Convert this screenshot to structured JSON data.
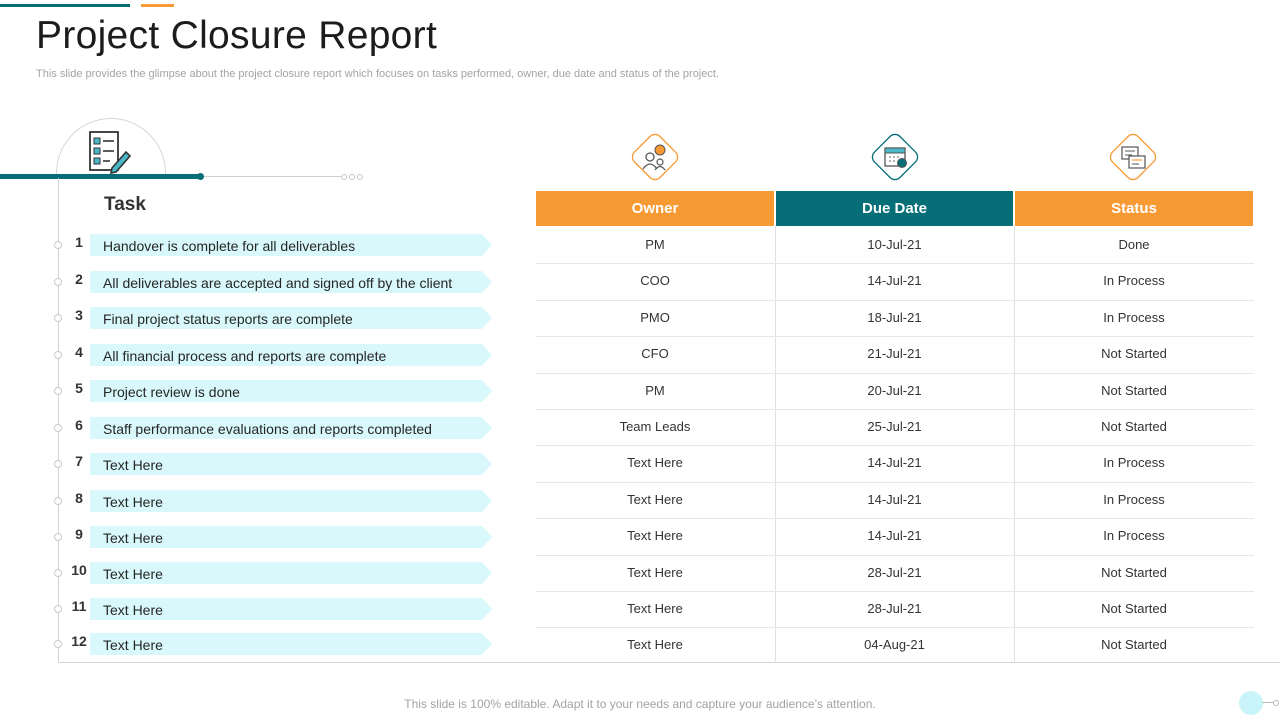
{
  "slide": {
    "title": "Project Closure Report",
    "subtitle": "This slide provides the glimpse about the project closure report which focuses on tasks performed, owner, due date and status of the project.",
    "footer": "This slide is 100% editable. Adapt it to your needs and capture your audience’s attention."
  },
  "task_header": "Task",
  "icons": {
    "task": "checklist-clipboard-icon",
    "owner": "owner-people-icon",
    "due_date": "calendar-icon",
    "status": "status-document-icon"
  },
  "colors": {
    "orange": "#f79a34",
    "teal": "#056e77",
    "light_cyan": "#d8f8fb"
  },
  "table": {
    "headers": {
      "owner": "Owner",
      "due_date": "Due Date",
      "status": "Status"
    },
    "rows": [
      {
        "num": "1",
        "task": "Handover is complete for all deliverables",
        "owner": "PM",
        "due": "10-Jul-21",
        "status": "Done"
      },
      {
        "num": "2",
        "task": "All deliverables are accepted and signed off by the client",
        "owner": "COO",
        "due": "14-Jul-21",
        "status": "In Process"
      },
      {
        "num": "3",
        "task": "Final project status reports are complete",
        "owner": "PMO",
        "due": "18-Jul-21",
        "status": "In Process"
      },
      {
        "num": "4",
        "task": "All financial process and reports are complete",
        "owner": "CFO",
        "due": "21-Jul-21",
        "status": "Not Started"
      },
      {
        "num": "5",
        "task": "Project review is done",
        "owner": "PM",
        "due": "20-Jul-21",
        "status": "Not Started"
      },
      {
        "num": "6",
        "task": "Staff performance evaluations and reports completed",
        "owner": "Team Leads",
        "due": "25-Jul-21",
        "status": "Not Started"
      },
      {
        "num": "7",
        "task": "Text Here",
        "owner": "Text Here",
        "due": "14-Jul-21",
        "status": "In Process"
      },
      {
        "num": "8",
        "task": "Text Here",
        "owner": "Text Here",
        "due": "14-Jul-21",
        "status": "In Process"
      },
      {
        "num": "9",
        "task": "Text Here",
        "owner": "Text Here",
        "due": "14-Jul-21",
        "status": "In Process"
      },
      {
        "num": "10",
        "task": "Text Here",
        "owner": "Text Here",
        "due": "28-Jul-21",
        "status": "Not Started"
      },
      {
        "num": "11",
        "task": "Text Here",
        "owner": "Text Here",
        "due": "28-Jul-21",
        "status": "Not Started"
      },
      {
        "num": "12",
        "task": "Text Here",
        "owner": "Text Here",
        "due": "04-Aug-21",
        "status": "Not Started"
      }
    ]
  }
}
